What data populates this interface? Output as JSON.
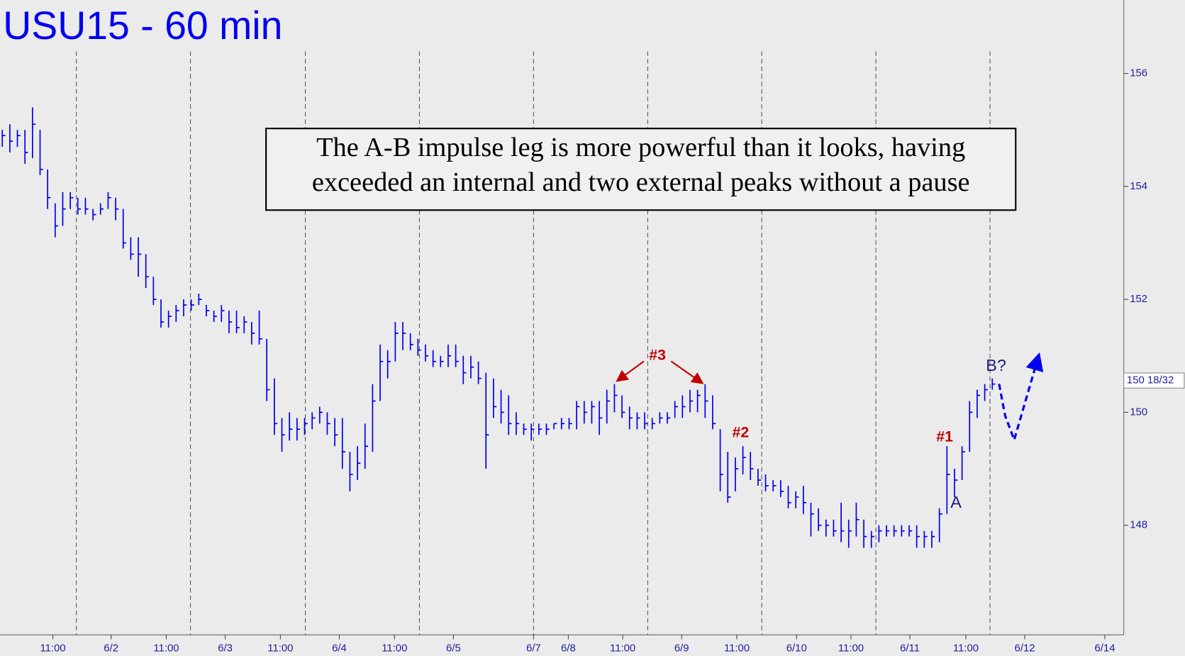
{
  "chart_data": {
    "type": "ohlc",
    "title": "USU15 - 60 min",
    "note_lines": [
      "The A-B impulse leg is more powerful than it looks, having",
      "exceeded an internal and two external peaks without a pause"
    ],
    "annotations": [
      "#3",
      "#2",
      "#1",
      "A",
      "B?"
    ],
    "color": "#0000ee",
    "xlim": [
      -0.3,
      148.4
    ],
    "ylim": [
      146.06,
      157.3
    ],
    "yticks": [
      148,
      150,
      152,
      154,
      156
    ],
    "xticks": [
      {
        "value": 6.7,
        "label": "11:00"
      },
      {
        "value": 14.4,
        "label": "6/2"
      },
      {
        "value": 21.7,
        "label": "11:00"
      },
      {
        "value": 29.5,
        "label": "6/3"
      },
      {
        "value": 36.8,
        "label": "11:00"
      },
      {
        "value": 44.6,
        "label": "6/4"
      },
      {
        "value": 51.9,
        "label": "11:00"
      },
      {
        "value": 59.7,
        "label": "6/5"
      },
      {
        "value": 70.3,
        "label": "6/7"
      },
      {
        "value": 74.9,
        "label": "6/8"
      },
      {
        "value": 82.1,
        "label": "11:00"
      },
      {
        "value": 89.9,
        "label": "6/9"
      },
      {
        "value": 97.2,
        "label": "11:00"
      },
      {
        "value": 105.1,
        "label": "6/10"
      },
      {
        "value": 112.3,
        "label": "11:00"
      },
      {
        "value": 120.1,
        "label": "6/11"
      },
      {
        "value": 127.5,
        "label": "11:00"
      },
      {
        "value": 135.3,
        "label": "6/12"
      },
      {
        "value": 145.9,
        "label": "6/14"
      }
    ],
    "session_lines": [
      9.8,
      24.9,
      40.1,
      55.2,
      70.3,
      85.4,
      100.5,
      115.6,
      130.7
    ],
    "last_price": {
      "value": 150.5625,
      "label": "150 18/32"
    },
    "high": [
      155.0,
      155.1,
      155.0,
      155.0,
      155.4,
      155.0,
      154.3,
      153.7,
      153.9,
      153.9,
      153.8,
      153.8,
      153.6,
      153.7,
      153.9,
      153.8,
      153.6,
      153.1,
      153.1,
      152.8,
      152.4,
      152.0,
      151.8,
      151.9,
      152.0,
      152.0,
      152.1,
      151.9,
      151.8,
      151.9,
      151.8,
      151.8,
      151.7,
      151.6,
      151.8,
      151.3,
      150.6,
      149.9,
      150.0,
      149.9,
      149.9,
      150.0,
      150.1,
      150.0,
      149.9,
      149.9,
      149.3,
      149.4,
      149.8,
      150.5,
      151.2,
      151.1,
      151.6,
      151.6,
      151.4,
      151.3,
      151.2,
      151.1,
      151.0,
      151.2,
      151.2,
      151.0,
      151.0,
      150.9,
      150.7,
      150.6,
      150.4,
      150.3,
      150.0,
      149.8,
      149.8,
      149.8,
      149.8,
      149.8,
      149.9,
      149.9,
      150.2,
      150.2,
      150.2,
      150.2,
      150.4,
      150.5,
      150.3,
      150.1,
      150.0,
      150.0,
      149.9,
      150.0,
      150.0,
      150.2,
      150.3,
      150.4,
      150.4,
      150.5,
      150.3,
      149.7,
      149.3,
      149.2,
      149.4,
      149.3,
      149.0,
      148.9,
      148.8,
      148.8,
      148.7,
      148.6,
      148.7,
      148.4,
      148.3,
      148.1,
      148.1,
      148.4,
      148.1,
      148.4,
      148.1,
      147.9,
      148.0,
      148.0,
      148.0,
      148.0,
      148.0,
      148.0,
      147.9,
      147.9,
      148.3,
      149.4,
      149.0,
      149.4,
      150.2,
      150.4,
      150.5,
      150.6
    ],
    "low": [
      154.7,
      154.6,
      154.7,
      154.4,
      154.5,
      154.2,
      153.6,
      153.1,
      153.3,
      153.6,
      153.5,
      153.5,
      153.4,
      153.5,
      153.6,
      153.4,
      152.9,
      152.7,
      152.4,
      152.2,
      151.9,
      151.5,
      151.5,
      151.6,
      151.7,
      151.8,
      151.9,
      151.7,
      151.6,
      151.6,
      151.4,
      151.4,
      151.4,
      151.2,
      151.2,
      150.2,
      149.6,
      149.3,
      149.5,
      149.5,
      149.6,
      149.7,
      149.8,
      149.6,
      149.4,
      149.0,
      148.6,
      148.8,
      149.0,
      149.3,
      150.2,
      150.6,
      150.9,
      151.1,
      151.1,
      151.0,
      150.9,
      150.8,
      150.8,
      150.8,
      150.8,
      150.5,
      150.6,
      150.5,
      149.0,
      149.9,
      149.8,
      149.6,
      149.6,
      149.6,
      149.5,
      149.6,
      149.6,
      149.7,
      149.7,
      149.7,
      149.7,
      149.8,
      149.8,
      149.6,
      149.8,
      150.0,
      149.9,
      149.7,
      149.7,
      149.7,
      149.7,
      149.8,
      149.8,
      149.9,
      149.9,
      150.0,
      150.0,
      149.9,
      149.7,
      148.6,
      148.4,
      148.6,
      148.9,
      148.8,
      148.7,
      148.6,
      148.6,
      148.5,
      148.3,
      148.3,
      148.2,
      147.8,
      147.9,
      147.8,
      147.8,
      147.7,
      147.6,
      147.8,
      147.6,
      147.6,
      147.7,
      147.8,
      147.8,
      147.8,
      147.8,
      147.6,
      147.6,
      147.6,
      147.7,
      148.2,
      148.5,
      148.8,
      149.3,
      149.9,
      150.2,
      150.4
    ],
    "close": [
      154.9,
      154.8,
      154.9,
      154.6,
      155.1,
      154.3,
      153.8,
      153.3,
      153.6,
      153.8,
      153.6,
      153.6,
      153.5,
      153.6,
      153.8,
      153.6,
      153.0,
      152.8,
      152.8,
      152.4,
      152.0,
      151.6,
      151.7,
      151.8,
      151.9,
      151.9,
      152.0,
      151.8,
      151.7,
      151.8,
      151.6,
      151.5,
      151.6,
      151.4,
      151.3,
      150.4,
      149.8,
      149.6,
      149.7,
      149.7,
      149.8,
      149.9,
      150.0,
      149.8,
      149.6,
      149.3,
      148.9,
      149.1,
      149.4,
      150.2,
      150.9,
      150.9,
      151.4,
      151.4,
      151.2,
      151.1,
      151.0,
      150.9,
      150.9,
      151.0,
      150.9,
      150.7,
      150.8,
      150.6,
      149.6,
      150.1,
      150.0,
      149.8,
      149.8,
      149.7,
      149.7,
      149.7,
      149.7,
      149.8,
      149.8,
      149.8,
      150.1,
      150.0,
      150.1,
      149.9,
      150.2,
      150.3,
      150.0,
      149.9,
      149.9,
      149.8,
      149.8,
      149.9,
      149.9,
      150.1,
      150.1,
      150.2,
      150.3,
      150.2,
      149.8,
      148.9,
      148.5,
      149.0,
      149.2,
      149.0,
      148.8,
      148.7,
      148.7,
      148.6,
      148.4,
      148.5,
      148.4,
      148.2,
      148.0,
      148.0,
      147.9,
      147.9,
      147.9,
      148.1,
      147.8,
      147.8,
      147.9,
      147.9,
      147.9,
      147.9,
      147.9,
      147.8,
      147.8,
      147.8,
      148.2,
      148.9,
      148.8,
      149.3,
      150.0,
      150.3,
      150.4,
      150.5
    ]
  }
}
